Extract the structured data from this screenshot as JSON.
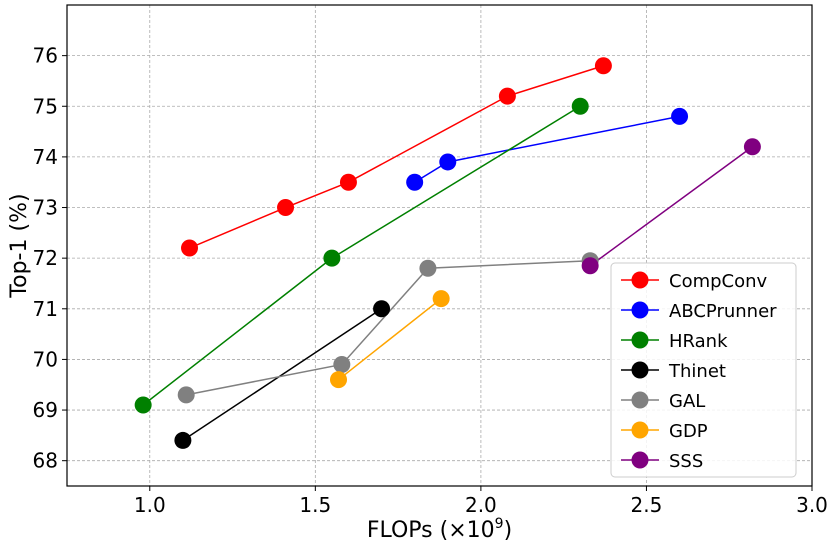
{
  "chart_data": {
    "type": "line",
    "title": "",
    "xlabel": "FLOPs (×10",
    "xlabel_sup": "9",
    "xlabel_close": ")",
    "ylabel": "Top-1 (%)",
    "xlim": [
      0.75,
      3.0
    ],
    "ylim": [
      67.5,
      77.0
    ],
    "grid": true,
    "legend_position": "lower-right",
    "x_ticks": [
      1.0,
      1.5,
      2.0,
      2.5,
      3.0
    ],
    "x_tick_labels": [
      "1.0",
      "1.5",
      "2.0",
      "2.5",
      "3.0"
    ],
    "y_ticks": [
      68,
      69,
      70,
      71,
      72,
      73,
      74,
      75,
      76
    ],
    "y_tick_labels": [
      "68",
      "69",
      "70",
      "71",
      "72",
      "73",
      "74",
      "75",
      "76"
    ],
    "series": [
      {
        "name": "CompConv",
        "color": "#ff0000",
        "x": [
          1.12,
          1.41,
          1.6,
          2.08,
          2.37
        ],
        "y": [
          72.2,
          73.0,
          73.5,
          75.2,
          75.8
        ]
      },
      {
        "name": "ABCPrunner",
        "color": "#0000ff",
        "x": [
          1.8,
          1.9,
          2.6
        ],
        "y": [
          73.5,
          73.9,
          74.8
        ]
      },
      {
        "name": "HRank",
        "color": "#008000",
        "x": [
          0.98,
          1.55,
          2.3
        ],
        "y": [
          69.1,
          72.0,
          75.0
        ]
      },
      {
        "name": "Thinet",
        "color": "#000000",
        "x": [
          1.1,
          1.7
        ],
        "y": [
          68.4,
          71.0
        ]
      },
      {
        "name": "GAL",
        "color": "#808080",
        "x": [
          1.11,
          1.58,
          1.84,
          2.33
        ],
        "y": [
          69.3,
          69.9,
          71.8,
          71.95
        ]
      },
      {
        "name": "GDP",
        "color": "#ffa500",
        "x": [
          1.57,
          1.88
        ],
        "y": [
          69.6,
          71.2
        ]
      },
      {
        "name": "SSS",
        "color": "#800080",
        "x": [
          2.33,
          2.82
        ],
        "y": [
          71.85,
          74.2
        ]
      }
    ]
  }
}
